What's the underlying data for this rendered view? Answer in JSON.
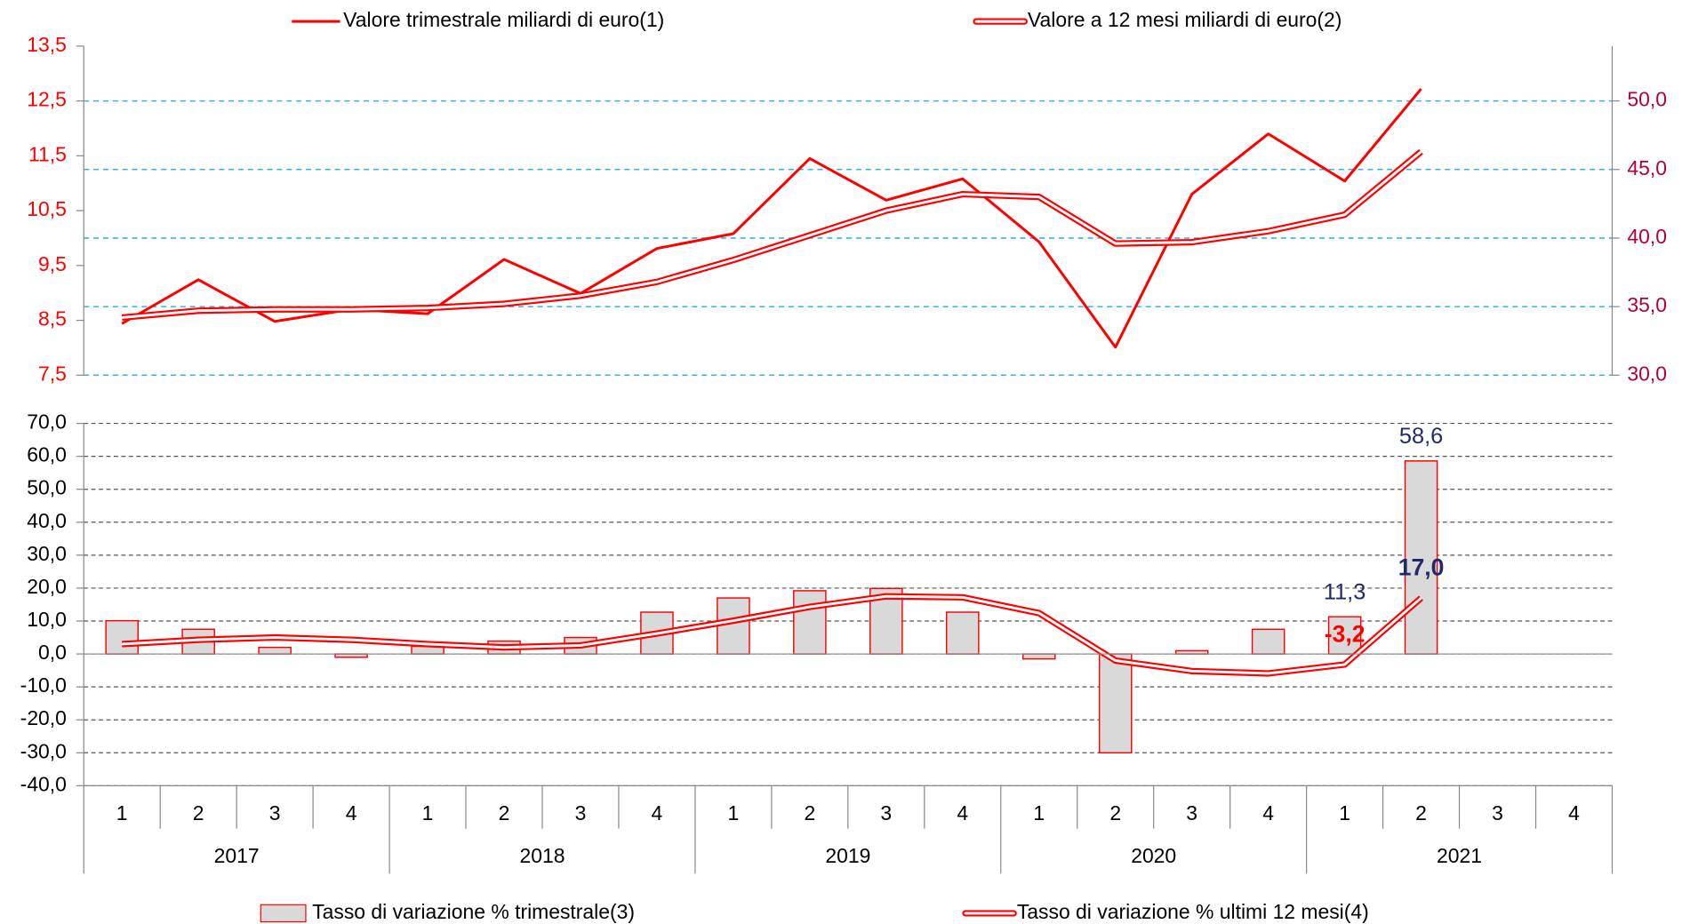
{
  "chart_data": [
    {
      "type": "line",
      "series": [
        {
          "name": "Valore trimestrale miliardi di euro(1)",
          "color": "#ff0000",
          "values": [
            8.44,
            9.24,
            8.48,
            8.7,
            8.62,
            9.61,
            8.99,
            9.81,
            10.08,
            11.45,
            10.69,
            11.08,
            9.93,
            8.01,
            10.8,
            11.9,
            11.04,
            12.72,
            null,
            null
          ]
        },
        {
          "name": "Valore a 12 mesi miliardi di euro(2)",
          "color": "#ff0000",
          "axis": "y2",
          "style": "double",
          "values": [
            34.2,
            34.7,
            34.8,
            34.8,
            34.9,
            35.2,
            35.8,
            36.8,
            38.4,
            40.2,
            42.0,
            43.2,
            43.0,
            39.6,
            39.7,
            40.5,
            41.7,
            46.3,
            null,
            null
          ]
        }
      ],
      "ylim": [
        7.5,
        13.5
      ],
      "yticks": [
        {
          "value": 7.5,
          "label": "7,5"
        },
        {
          "value": 8.5,
          "label": "8,5"
        },
        {
          "value": 9.5,
          "label": "9,5"
        },
        {
          "value": 10.5,
          "label": "10,5"
        },
        {
          "value": 11.5,
          "label": "11,5"
        },
        {
          "value": 12.5,
          "label": "12,5"
        },
        {
          "value": 13.5,
          "label": "13,5"
        }
      ],
      "y2lim": [
        30,
        54
      ],
      "y2ticks": [
        {
          "value": 30,
          "label": "30,0"
        },
        {
          "value": 35,
          "label": "35,0"
        },
        {
          "value": 40,
          "label": "40,0"
        },
        {
          "value": 45,
          "label": "45,0"
        },
        {
          "value": 50,
          "label": "50,0"
        }
      ],
      "grid": true
    },
    {
      "type": "bar",
      "categories": [
        "1",
        "2",
        "3",
        "4",
        "1",
        "2",
        "3",
        "4",
        "1",
        "2",
        "3",
        "4",
        "1",
        "2",
        "3",
        "4",
        "1",
        "2",
        "3",
        "4"
      ],
      "category_groups": [
        "2017",
        "2018",
        "2019",
        "2020",
        "2021"
      ],
      "series": [
        {
          "name": "Tasso di variazione % trimestrale(3)",
          "type": "bar",
          "color": "#d9d9d9",
          "edge": "#ff0000",
          "values": [
            10.1,
            7.5,
            2.0,
            -1.0,
            2.3,
            3.9,
            5.0,
            12.7,
            17.0,
            19.2,
            19.9,
            12.7,
            -1.5,
            -30.0,
            1.0,
            7.5,
            11.3,
            58.6,
            null,
            null
          ],
          "value_labels": [
            null,
            null,
            null,
            null,
            null,
            null,
            null,
            null,
            null,
            null,
            null,
            null,
            null,
            null,
            null,
            null,
            "11,3",
            "58,6",
            null,
            null
          ]
        },
        {
          "name": "Tasso di variazione % ultimi 12 mesi(4)",
          "type": "line",
          "style": "double",
          "color": "#ff0000",
          "values": [
            3.0,
            4.3,
            5.0,
            4.3,
            3.0,
            2.0,
            2.6,
            6.2,
            10.1,
            14.3,
            17.5,
            17.2,
            12.4,
            -2.0,
            -5.2,
            -5.9,
            -3.2,
            17.0,
            null,
            null
          ],
          "value_labels": [
            null,
            null,
            null,
            null,
            null,
            null,
            null,
            null,
            null,
            null,
            null,
            null,
            null,
            null,
            null,
            null,
            "-3,2",
            "17,0",
            null,
            null
          ]
        }
      ],
      "ylim": [
        -40,
        70
      ],
      "yticks": [
        {
          "value": -40,
          "label": "-40,0"
        },
        {
          "value": -30,
          "label": "-30,0"
        },
        {
          "value": -20,
          "label": "-20,0"
        },
        {
          "value": -10,
          "label": "-10,0"
        },
        {
          "value": 0,
          "label": "0,0"
        },
        {
          "value": 10,
          "label": "10,0"
        },
        {
          "value": 20,
          "label": "20,0"
        },
        {
          "value": 30,
          "label": "30,0"
        },
        {
          "value": 40,
          "label": "40,0"
        },
        {
          "value": 50,
          "label": "50,0"
        },
        {
          "value": 60,
          "label": "60,0"
        },
        {
          "value": 70,
          "label": "70,0"
        }
      ],
      "grid": true
    }
  ]
}
